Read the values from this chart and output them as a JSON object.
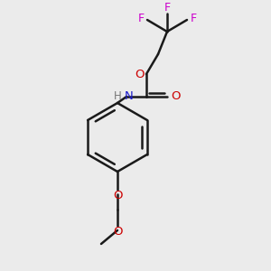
{
  "bg_color": "#ebebeb",
  "bond_color": "#1a1a1a",
  "bond_width": 1.8,
  "fig_width": 3.0,
  "fig_height": 3.0,
  "dpi": 100,
  "colors": {
    "F": "#cc00cc",
    "O": "#cc0000",
    "N": "#1a1acc",
    "H": "#777777",
    "C": "#1a1a1a"
  }
}
